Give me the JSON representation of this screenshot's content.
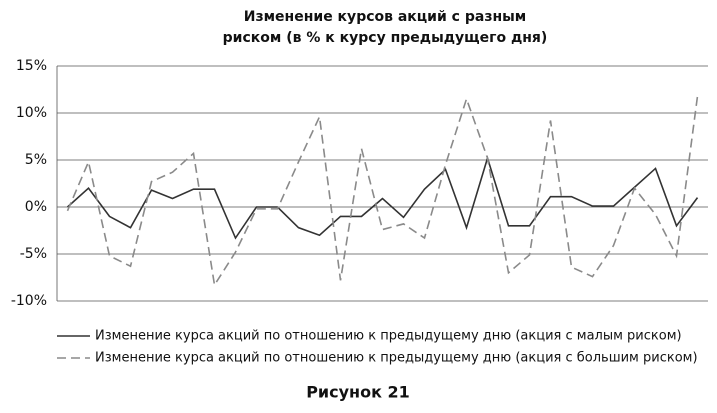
{
  "chart_data": {
    "type": "line",
    "title": [
      "Изменение курсов акций с разным",
      "риском (в % к курсу предыдущего дня)"
    ],
    "caption": "Рисунок 21",
    "categories": [
      null,
      null,
      null,
      null,
      null,
      null,
      null,
      null,
      null,
      null,
      null,
      null,
      null,
      null,
      null,
      null,
      null,
      null,
      null,
      null,
      null,
      null,
      null,
      null,
      null,
      null,
      null,
      null,
      null,
      null,
      null
    ],
    "series": [
      {
        "name": "Изменение курса акций по отношению к предыдущему дню (акция с малым риском)",
        "color": "#333333",
        "style": "solid",
        "values": [
          0,
          2,
          -1,
          -2.2,
          1.8,
          0.9,
          1.9,
          1.9,
          -3.3,
          0,
          0,
          -2.2,
          -3,
          -1,
          -1,
          0.9,
          -1.1,
          1.9,
          4,
          -2.2,
          5.2,
          -2,
          -2,
          1.1,
          1.1,
          0.1,
          0.1,
          2.1,
          4.1,
          -2,
          1
        ]
      },
      {
        "name": "Изменение курса акций по отношению к предыдущему дню (акция с большим риском)",
        "color": "#8a8a8a",
        "style": "dashed",
        "values": [
          -0.4,
          4.8,
          -5.2,
          -6.3,
          2.7,
          3.7,
          5.7,
          -8.3,
          -4.8,
          -0.2,
          -0.2,
          4.8,
          9.6,
          -7.8,
          6.2,
          -2.4,
          -1.8,
          -3.3,
          4.5,
          11.5,
          5.2,
          -7,
          -5.1,
          9.2,
          -6.4,
          -7.4,
          -4.1,
          2,
          -0.8,
          -5.2,
          11.8
        ]
      }
    ],
    "ylim": [
      -10,
      15
    ],
    "yticks": [
      {
        "value": -10,
        "label": "-10%"
      },
      {
        "value": -5,
        "label": "-5%"
      },
      {
        "value": 0,
        "label": "0%"
      },
      {
        "value": 5,
        "label": "5%"
      },
      {
        "value": 10,
        "label": "10%"
      },
      {
        "value": 15,
        "label": "15%"
      }
    ],
    "grid": true,
    "legend": "bottom"
  }
}
